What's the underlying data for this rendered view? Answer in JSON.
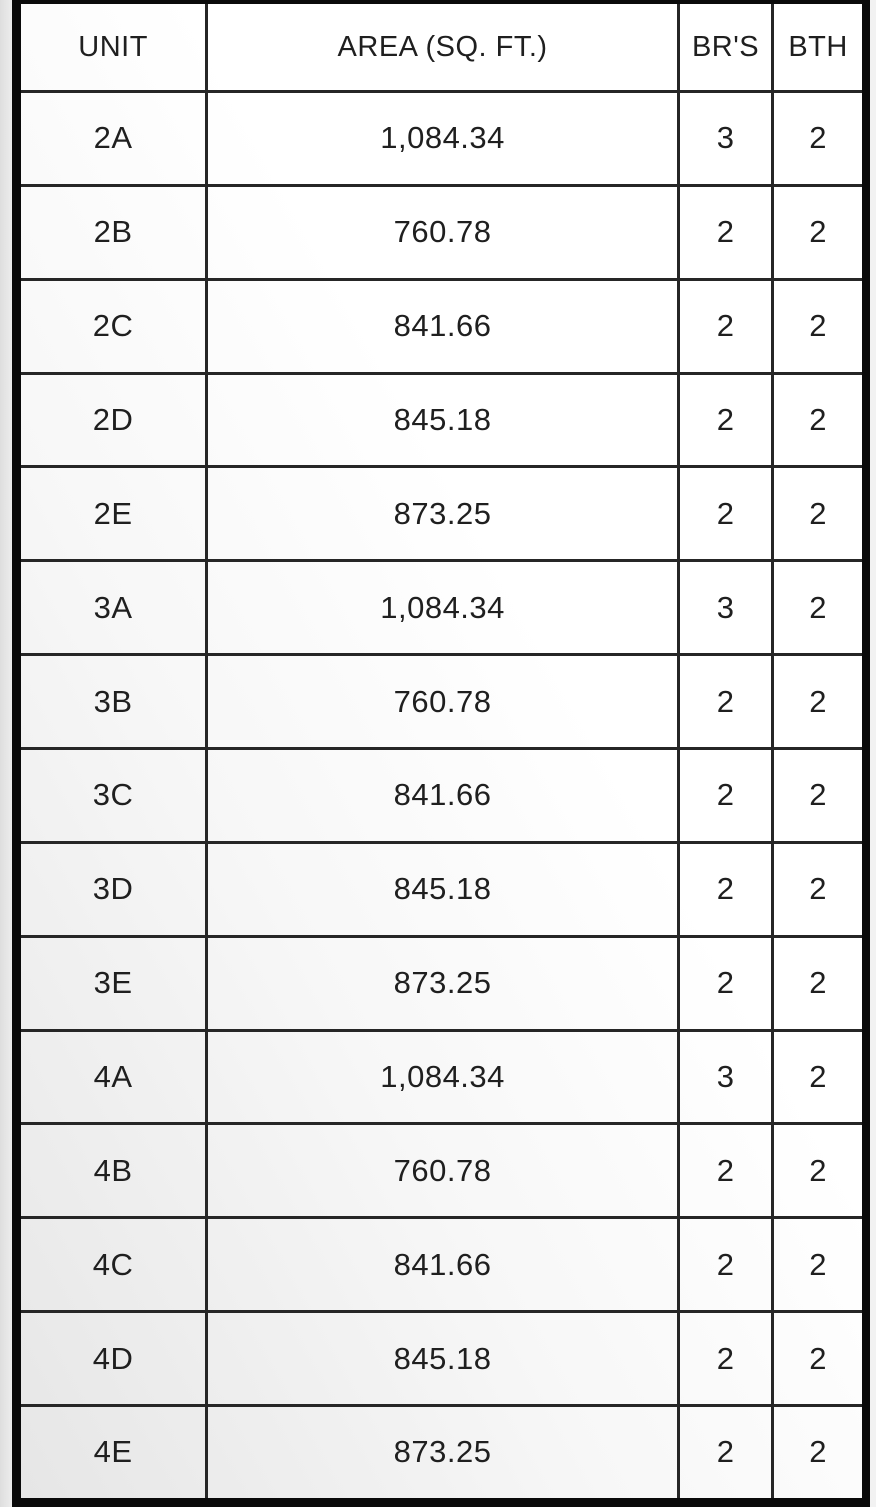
{
  "table": {
    "columns": [
      "UNIT",
      "AREA (SQ. FT.)",
      "BR'S",
      "BTH"
    ],
    "rows": [
      [
        "2A",
        "1,084.34",
        "3",
        "2"
      ],
      [
        "2B",
        "760.78",
        "2",
        "2"
      ],
      [
        "2C",
        "841.66",
        "2",
        "2"
      ],
      [
        "2D",
        "845.18",
        "2",
        "2"
      ],
      [
        "2E",
        "873.25",
        "2",
        "2"
      ],
      [
        "3A",
        "1,084.34",
        "3",
        "2"
      ],
      [
        "3B",
        "760.78",
        "2",
        "2"
      ],
      [
        "3C",
        "841.66",
        "2",
        "2"
      ],
      [
        "3D",
        "845.18",
        "2",
        "2"
      ],
      [
        "3E",
        "873.25",
        "2",
        "2"
      ],
      [
        "4A",
        "1,084.34",
        "3",
        "2"
      ],
      [
        "4B",
        "760.78",
        "2",
        "2"
      ],
      [
        "4C",
        "841.66",
        "2",
        "2"
      ],
      [
        "4D",
        "845.18",
        "2",
        "2"
      ],
      [
        "4E",
        "873.25",
        "2",
        "2"
      ]
    ]
  },
  "colors": {
    "outer_border": "#0a0a0a",
    "grid_line": "#262626",
    "text": "#1f1f1f"
  }
}
